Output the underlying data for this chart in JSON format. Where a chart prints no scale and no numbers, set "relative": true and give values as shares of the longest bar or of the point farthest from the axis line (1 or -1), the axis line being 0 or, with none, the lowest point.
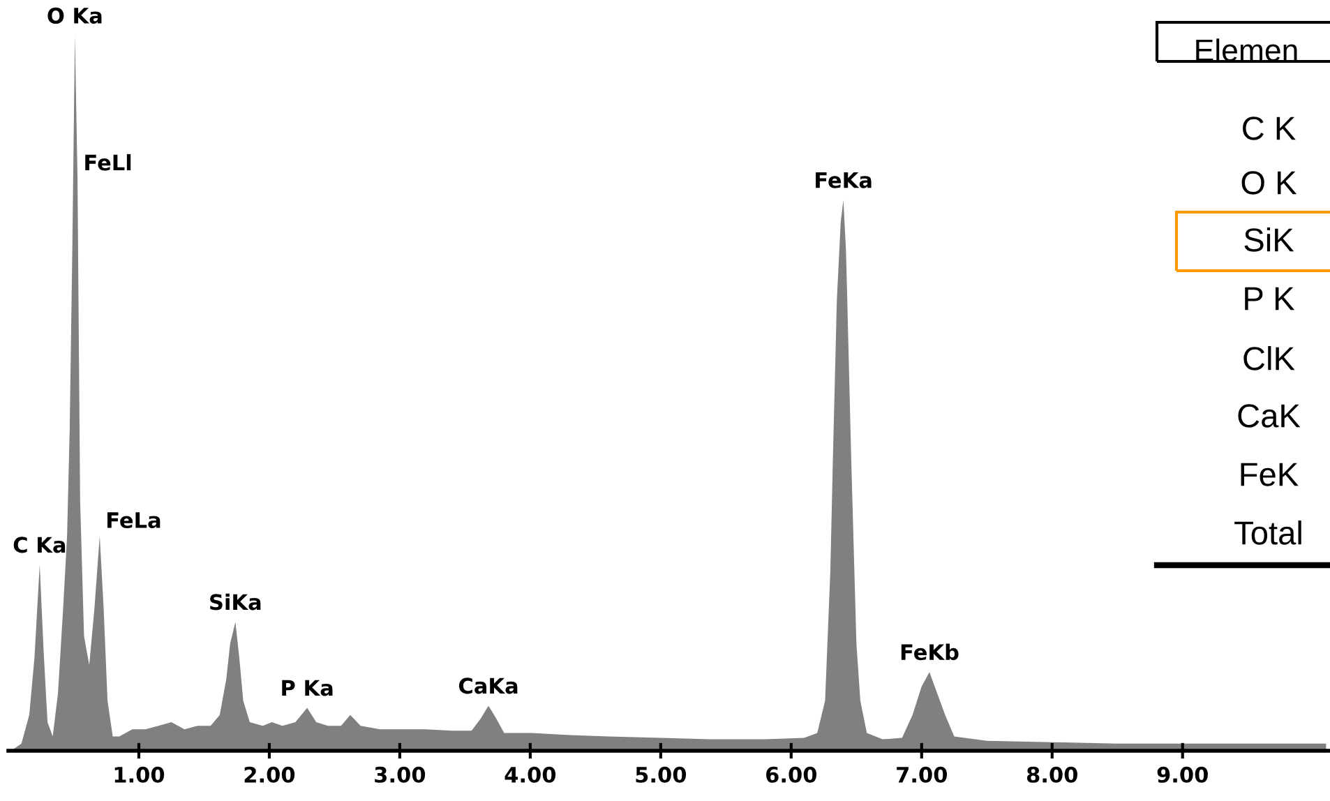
{
  "chart_data": {
    "type": "area",
    "relative": true,
    "color": "#808080",
    "x": [
      0.02,
      0.1,
      0.16,
      0.2,
      0.24,
      0.27,
      0.3,
      0.34,
      0.38,
      0.42,
      0.45,
      0.47,
      0.49,
      0.51,
      0.53,
      0.55,
      0.58,
      0.62,
      0.66,
      0.7,
      0.73,
      0.76,
      0.8,
      0.85,
      0.95,
      1.05,
      1.15,
      1.25,
      1.35,
      1.45,
      1.55,
      1.62,
      1.67,
      1.7,
      1.74,
      1.77,
      1.8,
      1.85,
      1.95,
      2.02,
      2.1,
      2.2,
      2.29,
      2.36,
      2.45,
      2.55,
      2.62,
      2.7,
      2.85,
      3.0,
      3.2,
      3.4,
      3.55,
      3.62,
      3.68,
      3.74,
      3.8,
      4.0,
      4.3,
      4.6,
      5.0,
      5.4,
      5.8,
      6.1,
      6.2,
      6.26,
      6.3,
      6.32,
      6.35,
      6.38,
      6.4,
      6.42,
      6.43,
      6.46,
      6.5,
      6.53,
      6.58,
      6.7,
      6.85,
      6.93,
      7.0,
      7.06,
      7.12,
      7.18,
      7.25,
      7.5,
      8.0,
      8.5,
      9.0,
      9.5,
      10.1
    ],
    "values": [
      0,
      0.01,
      0.05,
      0.13,
      0.26,
      0.14,
      0.04,
      0.02,
      0.08,
      0.2,
      0.3,
      0.45,
      0.7,
      1.0,
      0.8,
      0.35,
      0.16,
      0.12,
      0.2,
      0.3,
      0.2,
      0.07,
      0.02,
      0.02,
      0.03,
      0.03,
      0.035,
      0.04,
      0.03,
      0.035,
      0.035,
      0.05,
      0.1,
      0.15,
      0.18,
      0.13,
      0.07,
      0.04,
      0.035,
      0.04,
      0.035,
      0.04,
      0.06,
      0.04,
      0.035,
      0.035,
      0.05,
      0.035,
      0.03,
      0.03,
      0.03,
      0.028,
      0.028,
      0.045,
      0.063,
      0.045,
      0.025,
      0.025,
      0.022,
      0.02,
      0.018,
      0.016,
      0.016,
      0.018,
      0.025,
      0.07,
      0.25,
      0.41,
      0.63,
      0.74,
      0.77,
      0.7,
      0.63,
      0.41,
      0.15,
      0.07,
      0.025,
      0.016,
      0.018,
      0.05,
      0.09,
      0.11,
      0.08,
      0.05,
      0.02,
      0.014,
      0.012,
      0.01,
      0.01,
      0.01,
      0.01
    ],
    "xlim": [
      0,
      10.13
    ],
    "xticks": [
      {
        "value": 1,
        "label": "1.00"
      },
      {
        "value": 2,
        "label": "2.00"
      },
      {
        "value": 3,
        "label": "3.00"
      },
      {
        "value": 4,
        "label": "4.00"
      },
      {
        "value": 5,
        "label": "5.00"
      },
      {
        "value": 6,
        "label": "6.00"
      },
      {
        "value": 7,
        "label": "7.00"
      },
      {
        "value": 8,
        "label": "8.00"
      },
      {
        "value": 9,
        "label": "9.00"
      }
    ],
    "grid": false,
    "annotations": [
      {
        "text": "O Ka",
        "x": 0.51,
        "y": 1.0
      },
      {
        "text": "FeLl",
        "x": 0.53,
        "y": 0.8
      },
      {
        "text": "FeLa",
        "x": 0.7,
        "y": 0.3
      },
      {
        "text": "C Ka",
        "x": 0.24,
        "y": 0.26
      },
      {
        "text": "SiKa",
        "x": 1.74,
        "y": 0.18
      },
      {
        "text": "P Ka",
        "x": 2.29,
        "y": 0.06
      },
      {
        "text": "CaKa",
        "x": 3.68,
        "y": 0.063
      },
      {
        "text": "FeKa",
        "x": 6.4,
        "y": 0.77
      },
      {
        "text": "FeKb",
        "x": 7.06,
        "y": 0.11
      },
      "Elemen",
      "C K",
      "O K",
      "SiK",
      "P K",
      "ClK",
      "CaK",
      "FeK",
      "Total"
    ]
  }
}
